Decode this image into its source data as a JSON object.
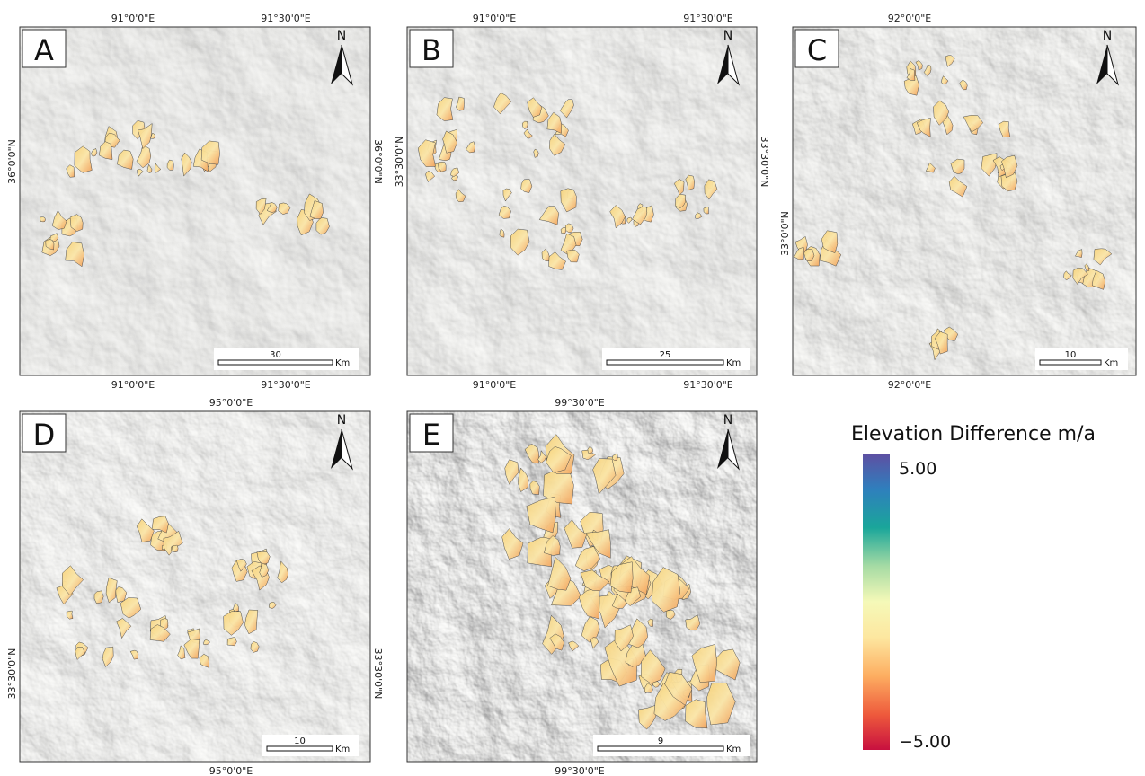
{
  "panels": [
    {
      "label": "A",
      "north": "N",
      "top_labels": [
        "91°0'0\"E",
        "91°30'0\"E"
      ],
      "bottom_labels": [
        "91°0'0\"E",
        "91°30'0\"E"
      ],
      "left_labels": [
        "36°0'0\"N"
      ],
      "right_labels": [
        "36°0'0\"N"
      ],
      "scale": {
        "value": "30",
        "unit": "Km"
      }
    },
    {
      "label": "B",
      "north": "N",
      "top_labels": [
        "91°0'0\"E",
        "91°30'0\"E"
      ],
      "bottom_labels": [
        "91°0'0\"E",
        "91°30'0\"E"
      ],
      "left_labels": [
        "33°30'0\"N"
      ],
      "right_labels": [
        "33°30'0\"N"
      ],
      "scale": {
        "value": "25",
        "unit": "Km"
      }
    },
    {
      "label": "C",
      "north": "N",
      "top_labels": [
        "92°0'0\"E"
      ],
      "bottom_labels": [
        "92°0'0\"E"
      ],
      "left_labels": [
        "33°0'0\"N"
      ],
      "right_labels": [],
      "scale": {
        "value": "10",
        "unit": "Km"
      }
    },
    {
      "label": "D",
      "north": "N",
      "top_labels": [
        "95°0'0\"E"
      ],
      "bottom_labels": [
        "95°0'0\"E"
      ],
      "left_labels": [
        "33°30'0\"N"
      ],
      "right_labels": [
        "33°30'0\"N"
      ],
      "scale": {
        "value": "10",
        "unit": "Km"
      }
    },
    {
      "label": "E",
      "north": "N",
      "top_labels": [
        "99°30'0\"E"
      ],
      "bottom_labels": [
        "99°30'0\"E"
      ],
      "left_labels": [],
      "right_labels": [],
      "scale": {
        "value": "9",
        "unit": "Km"
      }
    }
  ],
  "legend": {
    "title": "Elevation Difference m/a",
    "max_label": "5.00",
    "min_label": "−5.00"
  }
}
